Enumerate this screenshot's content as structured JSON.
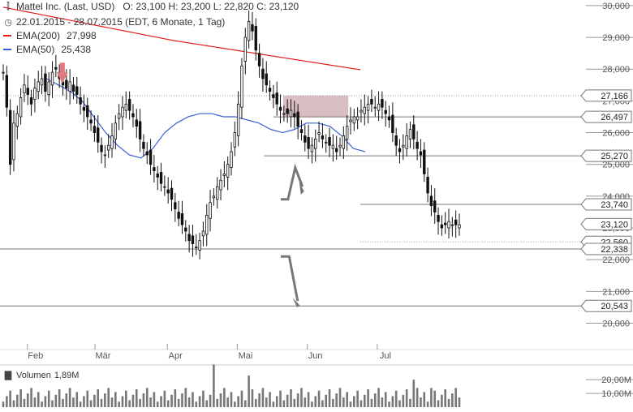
{
  "header": {
    "title": "Mattel Inc. (Last, USD)",
    "ohlc": "O: 23,100   H: 23,200   L: 22,820   C: 23,120",
    "period": "22.01.2015 - 28.07.2015 (EDT, 6 Monate, 1 Tag)",
    "ema200_label": "EMA(200)",
    "ema200_value": "27,998",
    "ema50_label": "EMA(50)",
    "ema50_value": "25,438",
    "volume_label": "Volumen",
    "volume_value": "1,89M"
  },
  "colors": {
    "ema200": "#e31d1d",
    "ema50": "#3a5fd9",
    "candle": "#111111",
    "box": "#c9a4a6",
    "arrow_down": "#e07a7e",
    "levels": "#777777"
  },
  "chart_data": {
    "type": "candlestick",
    "title": "Mattel Inc. (Last, USD)",
    "ylim": [
      19.4,
      30.1
    ],
    "yticks": [
      "30,000",
      "29,000",
      "28,000",
      "27,000",
      "26,000",
      "25,000",
      "24,000",
      "23,000",
      "22,000",
      "21,000",
      "20,000"
    ],
    "ytick_values": [
      30,
      29,
      28,
      27,
      26,
      25,
      24,
      23,
      22,
      21,
      20
    ],
    "xticks": [
      "Feb",
      "Mär",
      "Apr",
      "Mai",
      "Jun",
      "Jul"
    ],
    "xtick_days": [
      10,
      38,
      68,
      97,
      126,
      155
    ],
    "n_days": 190,
    "price_close": [
      27.9,
      26.8,
      25.0,
      26.3,
      26.6,
      27.1,
      27.5,
      27.2,
      26.9,
      27.4,
      27.6,
      27.7,
      27.3,
      27.6,
      27.9,
      28.0,
      27.7,
      27.5,
      27.4,
      27.6,
      27.3,
      27.2,
      26.9,
      26.7,
      26.5,
      26.3,
      26.0,
      25.7,
      25.4,
      25.3,
      25.6,
      25.9,
      26.3,
      26.6,
      26.8,
      26.9,
      26.7,
      26.5,
      26.2,
      25.8,
      25.5,
      25.3,
      25.0,
      24.8,
      24.6,
      24.4,
      24.3,
      24.1,
      23.9,
      23.6,
      23.3,
      23.1,
      22.9,
      22.6,
      22.5,
      22.4,
      22.6,
      22.9,
      23.4,
      23.8,
      24.0,
      24.3,
      24.5,
      24.7,
      25.0,
      25.4,
      26.0,
      26.9,
      28.1,
      29.0,
      29.5,
      29.2,
      28.6,
      28.1,
      27.7,
      27.5,
      27.3,
      27.1,
      26.9,
      26.7,
      26.6,
      26.6,
      26.7,
      26.5,
      26.2,
      26.0,
      25.7,
      25.5,
      25.6,
      25.8,
      26.0,
      25.8,
      25.7,
      25.6,
      25.6,
      25.4,
      25.6,
      25.9,
      26.2,
      26.4,
      26.5,
      26.5,
      26.7,
      26.8,
      26.9,
      26.9,
      26.8,
      26.9,
      26.8,
      26.6,
      26.4,
      26.0,
      25.6,
      25.4,
      25.6,
      25.9,
      26.1,
      25.8,
      25.5,
      25.3,
      24.7,
      24.1,
      23.7,
      23.5,
      23.2,
      23.0,
      23.1,
      23.2,
      23.1,
      23.1,
      23.1,
      23.1,
      23.1,
      23.1,
      23.1,
      23.1,
      23.1,
      23.1,
      23.1,
      23.1,
      23.1,
      23.1,
      23.1,
      23.1,
      23.1,
      23.1,
      23.1,
      23.1,
      23.1,
      23.1,
      23.1,
      23.1,
      23.1,
      23.1,
      23.1,
      23.1,
      23.1,
      23.1,
      23.1,
      23.1,
      23.1,
      23.1,
      23.1,
      23.1,
      23.1,
      23.1,
      23.1,
      23.1,
      23.1,
      23.1,
      23.1,
      23.1,
      23.1,
      23.1,
      23.1,
      23.1,
      23.1,
      23.1,
      23.1,
      23.1,
      23.1,
      23.1,
      23.1,
      23.1,
      23.1,
      23.1,
      23.1,
      23.1
    ],
    "ema200": [
      29.95,
      29.9,
      29.85,
      29.8,
      29.75,
      29.7,
      29.65,
      29.6,
      29.55,
      29.5,
      29.45,
      29.4,
      29.35,
      29.3,
      29.25,
      29.2,
      29.15,
      29.1,
      29.05,
      29.0,
      28.95,
      28.9,
      28.86,
      28.82,
      28.78,
      28.74,
      28.7,
      28.66,
      28.62,
      28.58,
      28.54,
      28.5,
      28.46,
      28.42,
      28.38,
      28.34,
      28.3,
      28.26,
      28.22,
      28.18,
      28.14,
      28.1,
      28.06,
      28.02,
      27.98
    ],
    "ema50": [
      27.7,
      27.5,
      27.3,
      27.0,
      26.5,
      26.0,
      25.6,
      25.3,
      25.2,
      25.5,
      26.0,
      26.3,
      26.5,
      26.6,
      26.6,
      26.5,
      26.5,
      26.4,
      26.3,
      26.1,
      26.0,
      26.1,
      26.3,
      26.3,
      26.2,
      25.9,
      25.5,
      25.4
    ],
    "levels": [
      {
        "value": 27.166,
        "label": "27,166",
        "style": "dotted"
      },
      {
        "value": 26.497,
        "label": "26,497",
        "style": "solid"
      },
      {
        "value": 25.27,
        "label": "25,270",
        "style": "solid"
      },
      {
        "value": 23.74,
        "label": "23,740",
        "style": "solid"
      },
      {
        "value": 23.12,
        "label": "23,120",
        "style": "current"
      },
      {
        "value": 22.56,
        "label": "22,560",
        "style": "dotted"
      },
      {
        "value": 22.338,
        "label": "22,338",
        "style": "solid"
      },
      {
        "value": 20.543,
        "label": "20,543",
        "style": "solid"
      }
    ],
    "volume_yticks": [
      "20,00M",
      "10,00M"
    ],
    "volume_ytick_values": [
      20,
      10
    ],
    "volume_max": 26
  }
}
